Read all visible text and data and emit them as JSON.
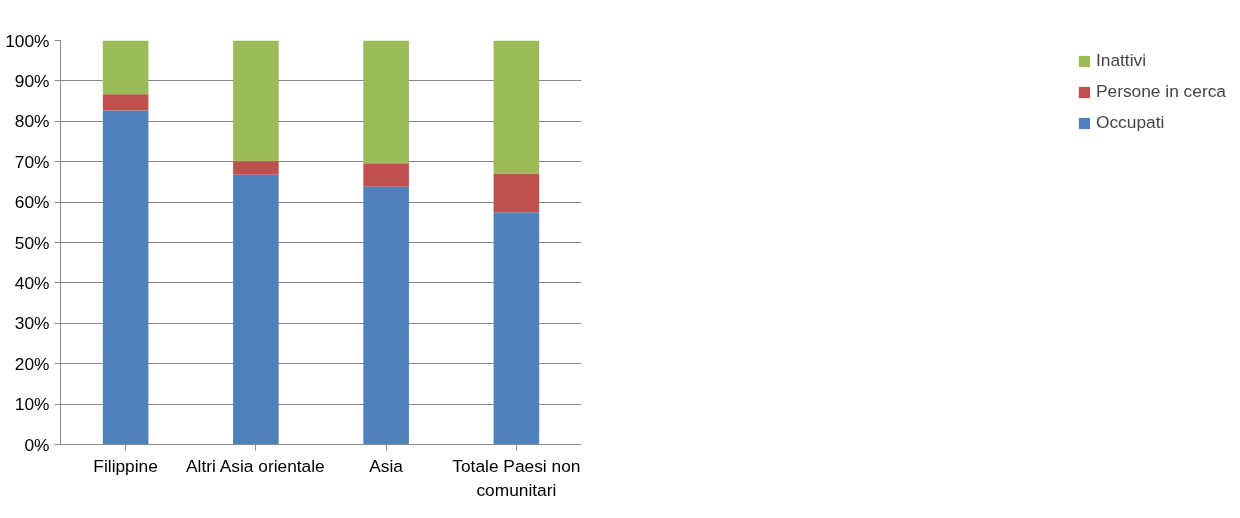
{
  "chart_data": {
    "type": "bar",
    "stacked": true,
    "categories": [
      "Filippine",
      "Altri Asia orientale",
      "Asia",
      "Totale Paesi non comunitari"
    ],
    "series": [
      {
        "name": "Occupati",
        "color": "#4f81bd",
        "values": [
          82.7,
          66.8,
          63.8,
          57.5
        ]
      },
      {
        "name": "Persone in cerca",
        "color": "#c0504d",
        "values": [
          4.0,
          3.3,
          5.8,
          9.6
        ]
      },
      {
        "name": "Inattivi",
        "color": "#9bbb59",
        "values": [
          13.3,
          29.9,
          30.4,
          32.9
        ]
      }
    ],
    "ylim": [
      0,
      100
    ],
    "yticks": [
      {
        "value": 0,
        "label": "0%"
      },
      {
        "value": 10,
        "label": "10%"
      },
      {
        "value": 20,
        "label": "20%"
      },
      {
        "value": 30,
        "label": "30%"
      },
      {
        "value": 40,
        "label": "40%"
      },
      {
        "value": 50,
        "label": "50%"
      },
      {
        "value": 60,
        "label": "60%"
      },
      {
        "value": 70,
        "label": "70%"
      },
      {
        "value": 80,
        "label": "80%"
      },
      {
        "value": 90,
        "label": "90%"
      },
      {
        "value": 100,
        "label": "100%"
      }
    ],
    "grid": "y",
    "legend": "right"
  }
}
